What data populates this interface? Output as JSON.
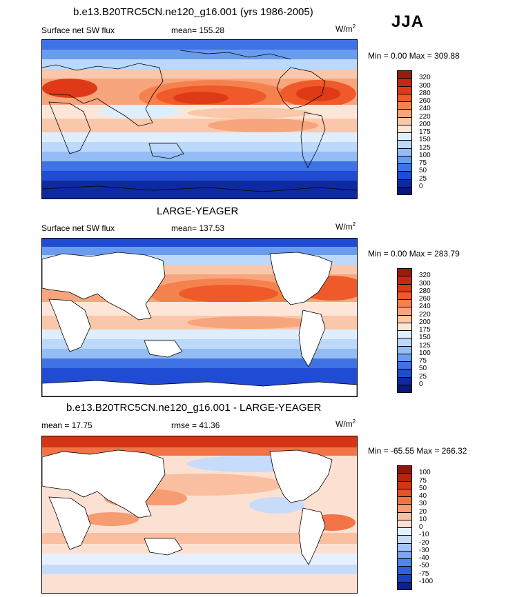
{
  "season": "JJA",
  "panels": [
    {
      "title": "b.e13.B20TRC5CN.ne120_g16.001 (yrs 1986-2005)",
      "left_label": "Surface net SW flux",
      "center_label": "mean= 155.28",
      "units": "W/m",
      "units_sup": "2",
      "minmax": "Min =   0.00 Max = 309.88",
      "legend_labels": [
        "320",
        "300",
        "280",
        "260",
        "240",
        "220",
        "200",
        "175",
        "150",
        "125",
        "100",
        "75",
        "50",
        "25",
        "0"
      ],
      "legend_colors": [
        "#9a1b0c",
        "#c2290f",
        "#df3a18",
        "#f05a2a",
        "#f5824e",
        "#f7a57d",
        "#fac7aa",
        "#fde6d8",
        "#dfeeff",
        "#bcd8fa",
        "#93bdf4",
        "#6a9cee",
        "#3f72e4",
        "#1f4cd2",
        "#0d2a9f",
        "#08197a"
      ]
    },
    {
      "title": "LARGE-YEAGER",
      "left_label": "Surface net SW flux",
      "center_label": "mean= 137.53",
      "units": "W/m",
      "units_sup": "2",
      "minmax": "Min =   0.00 Max = 283.79",
      "legend_labels": [
        "320",
        "300",
        "280",
        "260",
        "240",
        "220",
        "200",
        "175",
        "150",
        "125",
        "100",
        "75",
        "50",
        "25",
        "0"
      ],
      "legend_colors": [
        "#9a1b0c",
        "#c2290f",
        "#df3a18",
        "#f05a2a",
        "#f5824e",
        "#f7a57d",
        "#fac7aa",
        "#fde6d8",
        "#dfeeff",
        "#bcd8fa",
        "#93bdf4",
        "#6a9cee",
        "#3f72e4",
        "#1f4cd2",
        "#0d2a9f",
        "#08197a"
      ]
    },
    {
      "title": "b.e13.B20TRC5CN.ne120_g16.001 - LARGE-YEAGER",
      "left_label": "mean =  17.75",
      "center_label": "rmse =  41.36",
      "units": "W/m",
      "units_sup": "2",
      "minmax": "Min = -65.55 Max = 266.32",
      "legend_labels": [
        "100",
        "75",
        "50",
        "40",
        "30",
        "20",
        "10",
        "0",
        "-10",
        "-20",
        "-30",
        "-40",
        "-50",
        "-75",
        "-100"
      ],
      "legend_colors": [
        "#8c1a0b",
        "#b3260f",
        "#d33617",
        "#e85226",
        "#f27446",
        "#f69b72",
        "#f9bfa0",
        "#fce1d3",
        "#e6f0ff",
        "#c7dcfb",
        "#a4c4f6",
        "#7ca5f0",
        "#5283e8",
        "#2f5fdc",
        "#1a3fc3",
        "#0c2190"
      ]
    }
  ],
  "chart_data": [
    {
      "type": "heatmap",
      "title": "b.e13.B20TRC5CN.ne120_g16.001 (yrs 1986-2005)",
      "season": "JJA",
      "field": "Surface net SW flux",
      "units": "W/m2",
      "mean": 155.28,
      "min": 0.0,
      "max": 309.88,
      "contour_levels": [
        0,
        25,
        50,
        75,
        100,
        125,
        150,
        175,
        200,
        220,
        240,
        260,
        280,
        300,
        320
      ]
    },
    {
      "type": "heatmap",
      "title": "LARGE-YEAGER",
      "season": "JJA",
      "field": "Surface net SW flux",
      "units": "W/m2",
      "mean": 137.53,
      "min": 0.0,
      "max": 283.79,
      "contour_levels": [
        0,
        25,
        50,
        75,
        100,
        125,
        150,
        175,
        200,
        220,
        240,
        260,
        280,
        300,
        320
      ]
    },
    {
      "type": "heatmap",
      "title": "b.e13.B20TRC5CN.ne120_g16.001 - LARGE-YEAGER",
      "season": "JJA",
      "units": "W/m2",
      "mean": 17.75,
      "rmse": 41.36,
      "min": -65.55,
      "max": 266.32,
      "contour_levels": [
        -100,
        -75,
        -50,
        -40,
        -30,
        -20,
        -10,
        0,
        10,
        20,
        30,
        40,
        50,
        75,
        100
      ]
    }
  ]
}
